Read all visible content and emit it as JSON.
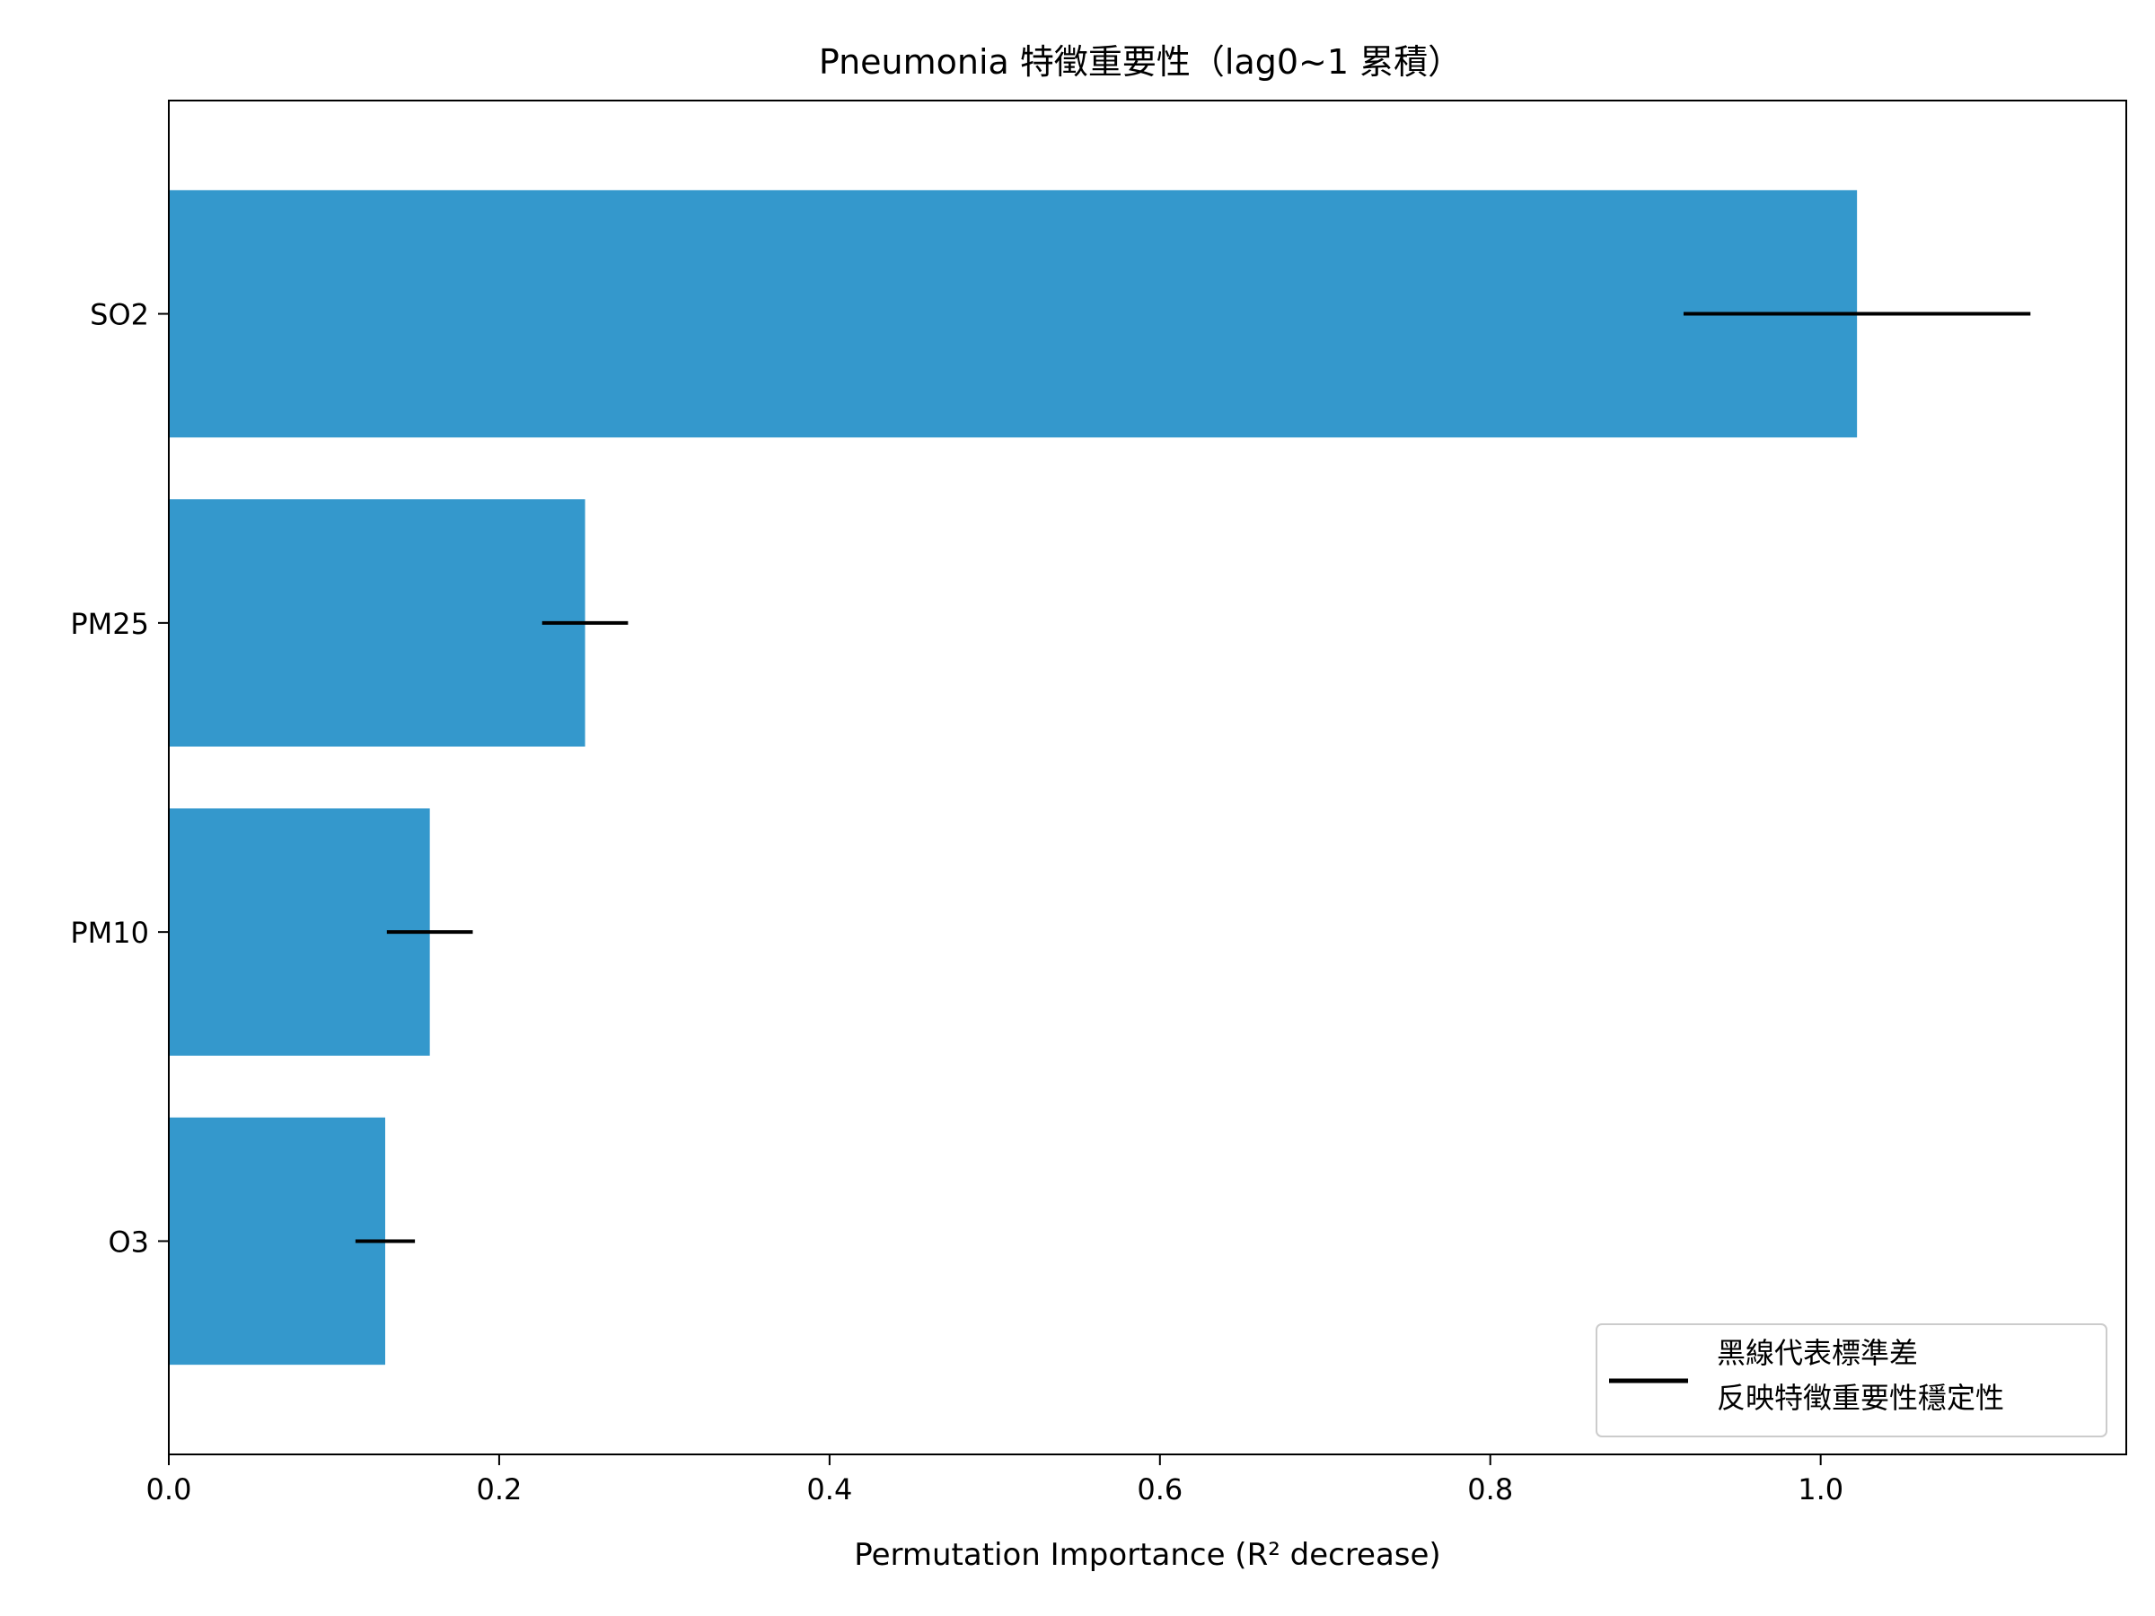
{
  "chart_data": {
    "type": "bar",
    "orientation": "horizontal",
    "title": "Pneumonia 特徵重要性（lag0~1 累積）",
    "xlabel": "Permutation Importance (R² decrease)",
    "ylabel": "",
    "categories": [
      "SO2",
      "PM25",
      "PM10",
      "O3"
    ],
    "values": [
      1.022,
      0.252,
      0.158,
      0.131
    ],
    "errors": [
      0.105,
      0.026,
      0.026,
      0.018
    ],
    "xlim": [
      0.0,
      1.185
    ],
    "xticks": [
      "0.0",
      "0.2",
      "0.4",
      "0.6",
      "0.8",
      "1.0"
    ],
    "xtick_values": [
      0.0,
      0.2,
      0.4,
      0.6,
      0.8,
      1.0
    ],
    "grid": false,
    "bar_color": "#3498cc",
    "error_color": "#000000",
    "legend": {
      "position": "lower-right",
      "lines": [
        "黑線代表標準差",
        "反映特徵重要性穩定性"
      ]
    }
  }
}
